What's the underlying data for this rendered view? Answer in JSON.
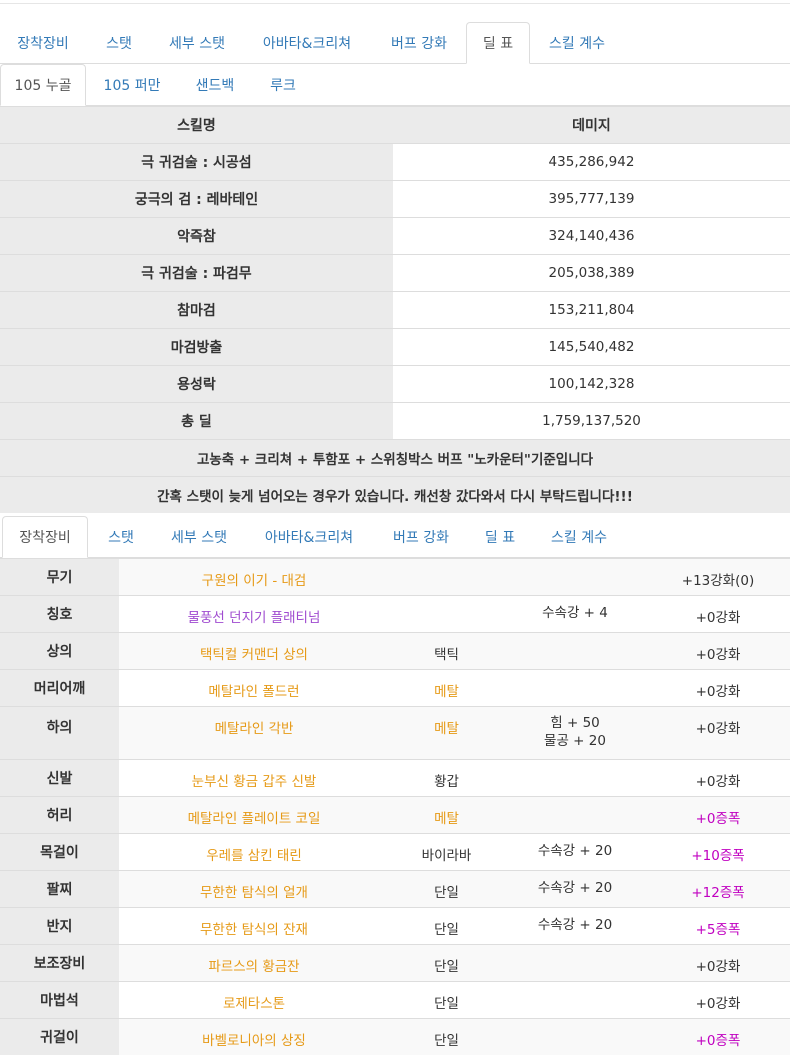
{
  "top_tabs": [
    "장착장비",
    "스탯",
    "세부 스탯",
    "아바타&크리쳐",
    "버프 강화",
    "딜 표",
    "스킬 계수"
  ],
  "top_tabs_active": "딜 표",
  "sub_tabs": [
    "105 누골",
    "105 퍼만",
    "샌드백",
    "루크"
  ],
  "sub_tabs_active": "105 누골",
  "damage_table": {
    "headers": [
      "스킬명",
      "데미지"
    ],
    "rows": [
      {
        "skill": "극 귀검술 : 시공섬",
        "damage": "435,286,942"
      },
      {
        "skill": "궁극의 검 : 레바테인",
        "damage": "395,777,139"
      },
      {
        "skill": "악즉참",
        "damage": "324,140,436"
      },
      {
        "skill": "극 귀검술 : 파검무",
        "damage": "205,038,389"
      },
      {
        "skill": "참마검",
        "damage": "153,211,804"
      },
      {
        "skill": "마검방출",
        "damage": "145,540,482"
      },
      {
        "skill": "용성락",
        "damage": "100,142,328"
      },
      {
        "skill": "총 딜",
        "damage": "1,759,137,520"
      }
    ],
    "note1": "고농축 + 크리쳐 + 투함포 + 스위칭박스 버프 \"노카운터\"기준입니다",
    "note2": "간혹 스탯이 늦게 넘어오는 경우가 있습니다. 캐선창 갔다와서 다시 부탁드립니다!!!"
  },
  "bottom_tabs": [
    "장착장비",
    "스탯",
    "세부 스탯",
    "아바타&크리쳐",
    "버프 강화",
    "딜 표",
    "스킬 계수"
  ],
  "bottom_tabs_active": "장착장비",
  "equipment": [
    {
      "slot": "무기",
      "name": "구원의 이기 - 대검",
      "name_color": "orange",
      "type": "",
      "type_color": "dark",
      "option": "",
      "enhance": "+13강화(0)",
      "enhance_color": "dark"
    },
    {
      "slot": "칭호",
      "name": "물풍선 던지기 플래티넘",
      "name_color": "purple",
      "type": "",
      "type_color": "dark",
      "option": "수속강 + 4",
      "enhance": "+0강화",
      "enhance_color": "dark"
    },
    {
      "slot": "상의",
      "name": "택틱컬 커맨더 상의",
      "name_color": "orange",
      "type": "택틱",
      "type_color": "dark",
      "option": "",
      "enhance": "+0강화",
      "enhance_color": "dark"
    },
    {
      "slot": "머리어깨",
      "name": "메탈라인 폴드런",
      "name_color": "orange",
      "type": "메탈",
      "type_color": "orange",
      "option": "",
      "enhance": "+0강화",
      "enhance_color": "dark"
    },
    {
      "slot": "하의",
      "name": "메탈라인 각반",
      "name_color": "orange",
      "type": "메탈",
      "type_color": "orange",
      "option": "힘 + 50",
      "option2": "물공 + 20",
      "enhance": "+0강화",
      "enhance_color": "dark"
    },
    {
      "slot": "신발",
      "name": "눈부신 황금 갑주 신발",
      "name_color": "orange",
      "type": "황갑",
      "type_color": "dark",
      "option": "",
      "enhance": "+0강화",
      "enhance_color": "dark"
    },
    {
      "slot": "허리",
      "name": "메탈라인 플레이트 코일",
      "name_color": "orange",
      "type": "메탈",
      "type_color": "orange",
      "option": "",
      "enhance": "+0증폭",
      "enhance_color": "magenta"
    },
    {
      "slot": "목걸이",
      "name": "우레를 삼킨 태린",
      "name_color": "orange",
      "type": "바이라바",
      "type_color": "dark",
      "option": "수속강 + 20",
      "enhance": "+10증폭",
      "enhance_color": "magenta"
    },
    {
      "slot": "팔찌",
      "name": "무한한 탐식의 얼개",
      "name_color": "orange",
      "type": "단일",
      "type_color": "dark",
      "option": "수속강 + 20",
      "enhance": "+12증폭",
      "enhance_color": "magenta"
    },
    {
      "slot": "반지",
      "name": "무한한 탐식의 잔재",
      "name_color": "orange",
      "type": "단일",
      "type_color": "dark",
      "option": "수속강 + 20",
      "enhance": "+5증폭",
      "enhance_color": "magenta"
    },
    {
      "slot": "보조장비",
      "name": "파르스의 황금잔",
      "name_color": "orange",
      "type": "단일",
      "type_color": "dark",
      "option": "",
      "enhance": "+0강화",
      "enhance_color": "dark"
    },
    {
      "slot": "마법석",
      "name": "로제타스톤",
      "name_color": "orange",
      "type": "단일",
      "type_color": "dark",
      "option": "",
      "enhance": "+0강화",
      "enhance_color": "dark"
    },
    {
      "slot": "귀걸이",
      "name": "바벨로니아의 상징",
      "name_color": "orange",
      "type": "단일",
      "type_color": "dark",
      "option": "",
      "enhance": "+0증폭",
      "enhance_color": "magenta"
    }
  ]
}
